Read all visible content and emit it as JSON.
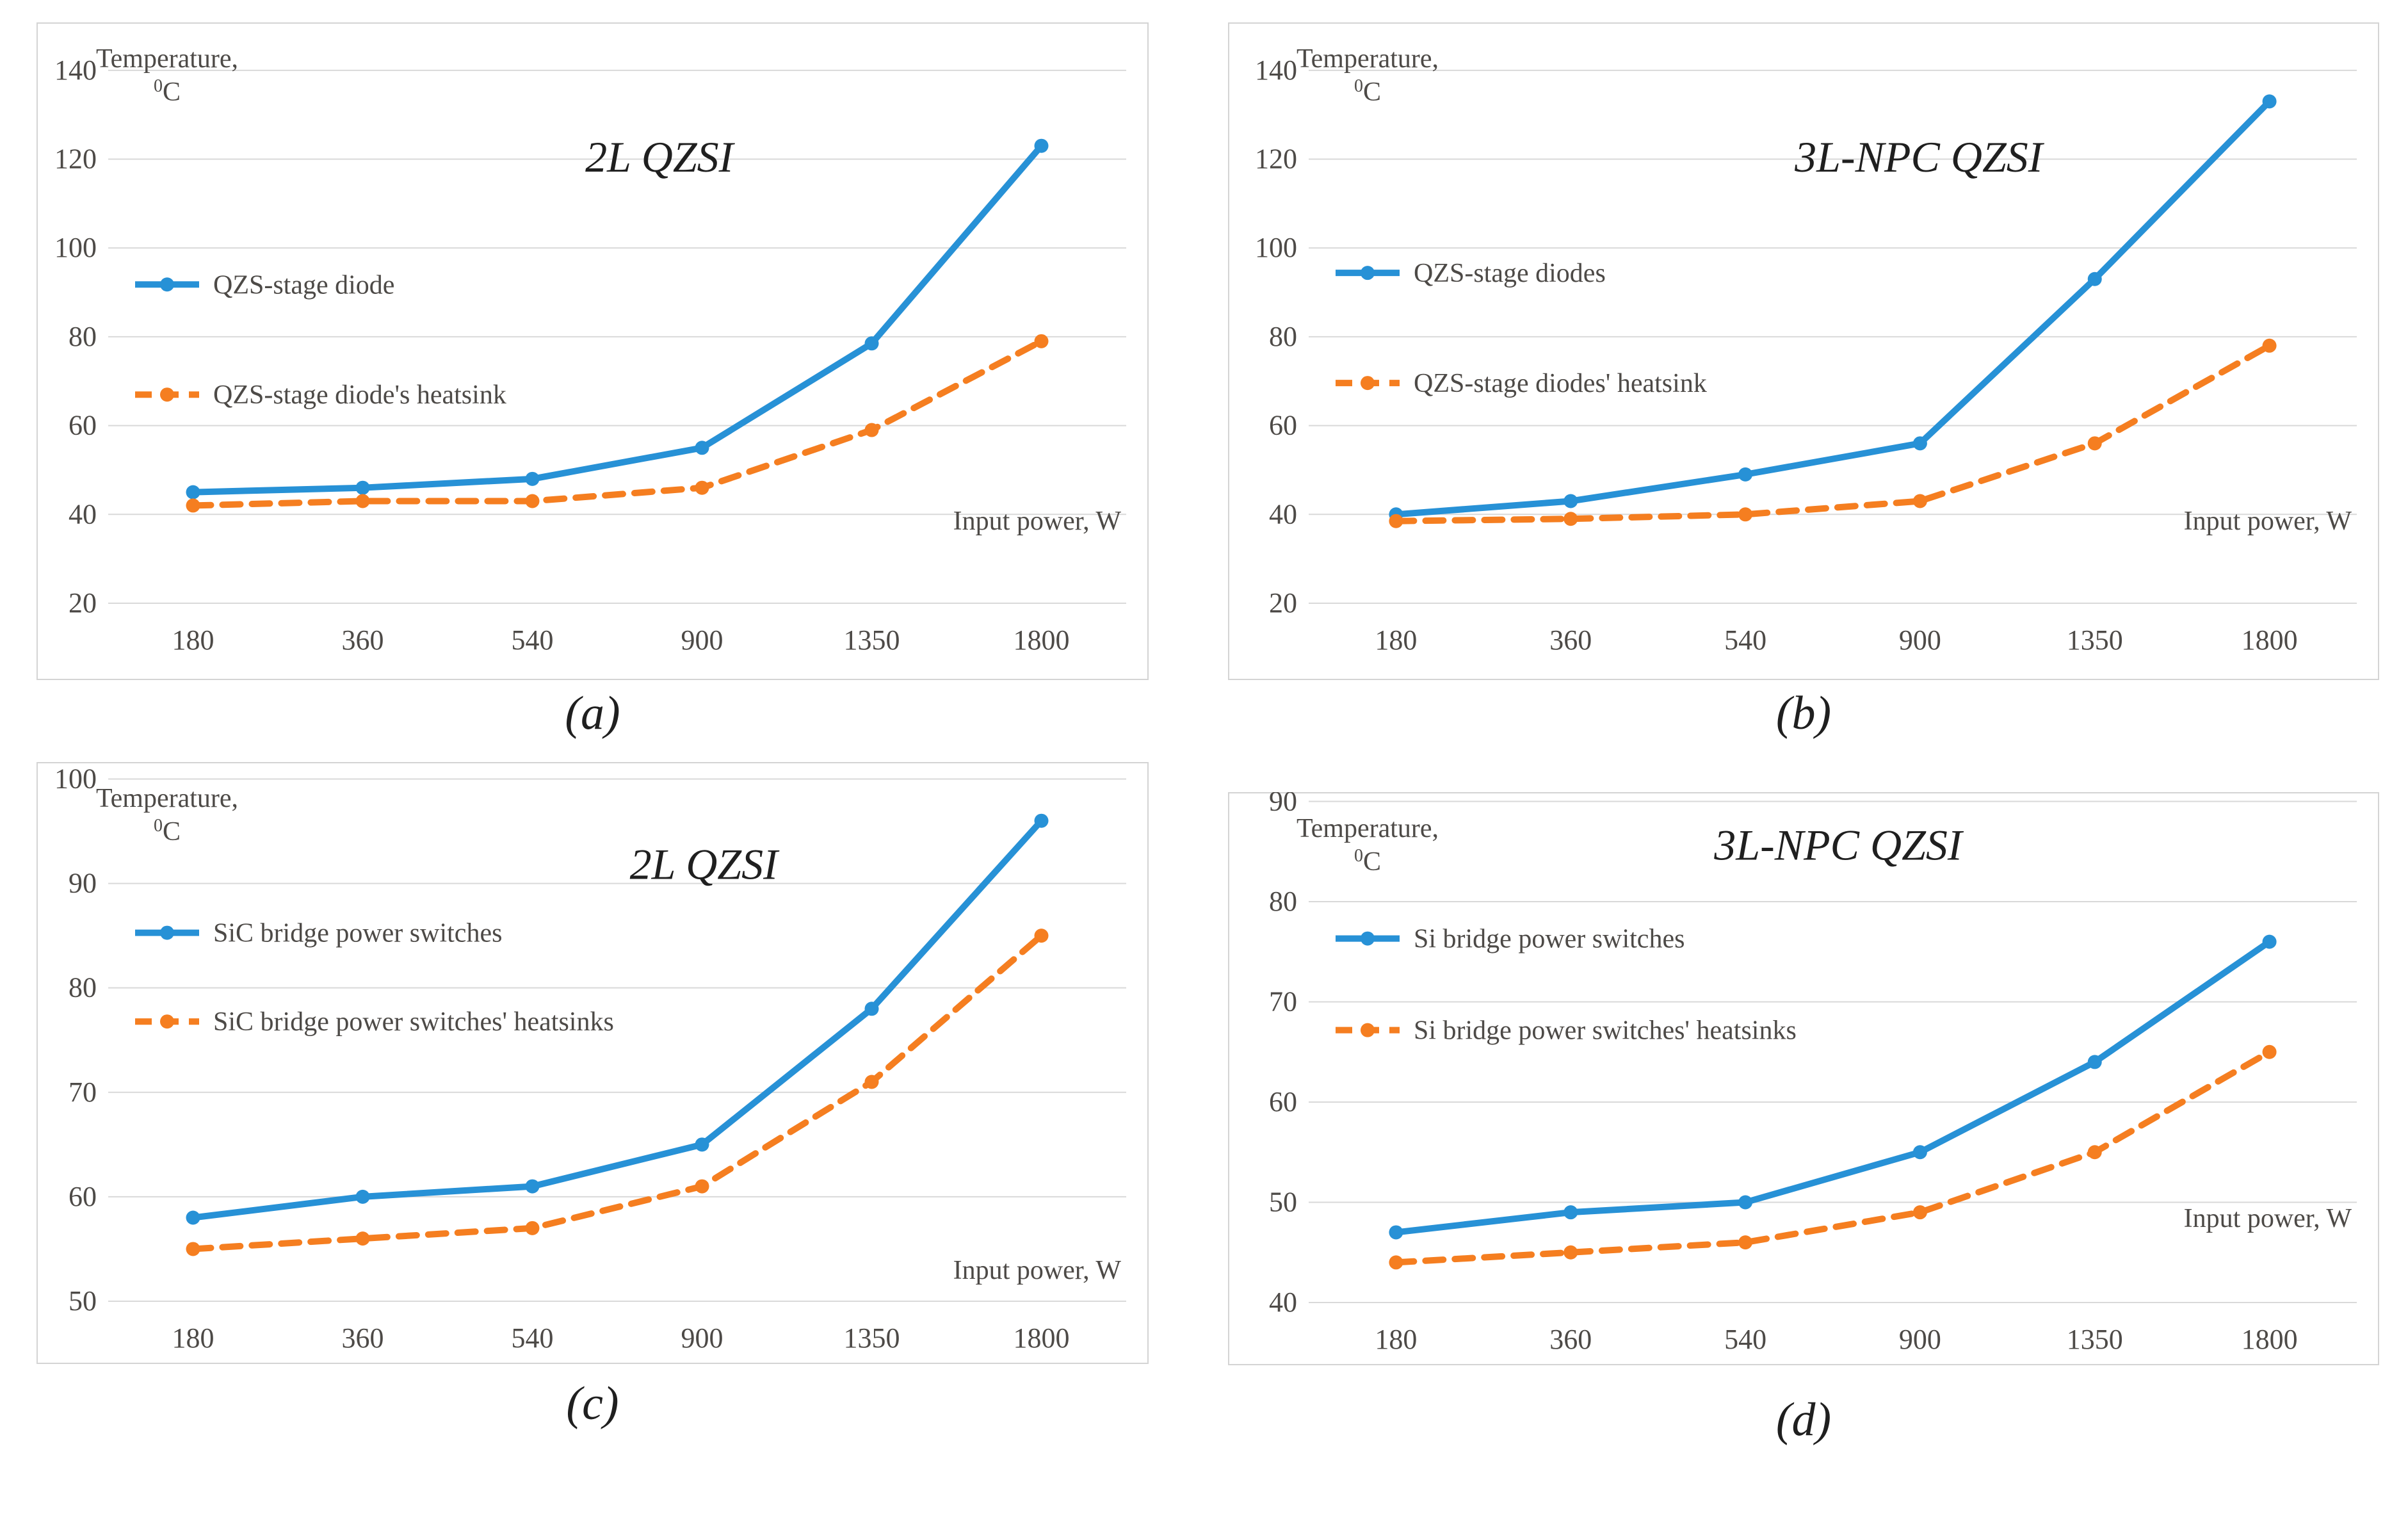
{
  "colors": {
    "series_blue": "#2791D6",
    "series_orange": "#F57E20",
    "gridline": "#D9D9D9",
    "panel_border": "#D4D4D4",
    "tick_text": "#4D4A47",
    "legend_text": "#4D4A47",
    "axis_label_text": "#4D4A47",
    "title_text": "#1f1f1f",
    "caption_text": "#1f1f1f"
  },
  "chart_data": [
    {
      "type": "line",
      "caption": "(a)",
      "title": "2L QZSI",
      "y_axis_label_line1": "Temperature,",
      "y_axis_label_sup": "0",
      "y_axis_label_unit": "C",
      "x_axis_label": "Input power, W",
      "categories": [
        "180",
        "360",
        "540",
        "900",
        "1350",
        "1800"
      ],
      "yticks": [
        20,
        40,
        60,
        80,
        100,
        120,
        140
      ],
      "ylim": [
        20,
        150.5
      ],
      "grid": true,
      "legend_position": "inside-upper-left",
      "series": [
        {
          "name": "QZS-stage diode",
          "color": "blue",
          "style": "solid",
          "values": [
            45,
            46,
            48,
            55,
            78.5,
            123
          ]
        },
        {
          "name": "QZS-stage diode's heatsink",
          "color": "orange",
          "style": "dashed",
          "values": [
            42,
            43,
            43,
            46,
            59,
            79
          ]
        }
      ]
    },
    {
      "type": "line",
      "caption": "(b)",
      "title": "3L-NPC QZSI",
      "y_axis_label_line1": "Temperature,",
      "y_axis_label_sup": "0",
      "y_axis_label_unit": "C",
      "x_axis_label": "Input power, W",
      "categories": [
        "180",
        "360",
        "540",
        "900",
        "1350",
        "1800"
      ],
      "yticks": [
        20,
        40,
        60,
        80,
        100,
        120,
        140
      ],
      "ylim": [
        20,
        150.5
      ],
      "grid": true,
      "legend_position": "inside-upper-left",
      "series": [
        {
          "name": "QZS-stage diodes",
          "color": "blue",
          "style": "solid",
          "values": [
            40,
            43,
            49,
            56,
            93,
            133
          ]
        },
        {
          "name": "QZS-stage diodes' heatsink",
          "color": "orange",
          "style": "dashed",
          "values": [
            38.5,
            39,
            40,
            43,
            56,
            78
          ]
        }
      ]
    },
    {
      "type": "line",
      "caption": "(c)",
      "title": "2L QZSI",
      "y_axis_label_line1": "Temperature,",
      "y_axis_label_sup": "0",
      "y_axis_label_unit": "C",
      "x_axis_label": "Input power, W",
      "categories": [
        "180",
        "360",
        "540",
        "900",
        "1350",
        "1800"
      ],
      "yticks": [
        50,
        60,
        70,
        80,
        90,
        100
      ],
      "ylim": [
        50,
        101.5
      ],
      "grid": true,
      "legend_position": "inside-upper-left",
      "series": [
        {
          "name": "SiC bridge power switches",
          "color": "blue",
          "style": "solid",
          "values": [
            58,
            60,
            61,
            65,
            78,
            96
          ]
        },
        {
          "name": "SiC bridge power switches' heatsinks",
          "color": "orange",
          "style": "dashed",
          "values": [
            55,
            56,
            57,
            61,
            71,
            85
          ]
        }
      ]
    },
    {
      "type": "line",
      "caption": "(d)",
      "title": "3L-NPC QZSI",
      "y_axis_label_line1": "Temperature,",
      "y_axis_label_sup": "0",
      "y_axis_label_unit": "C",
      "x_axis_label": "Input power, W",
      "categories": [
        "180",
        "360",
        "540",
        "900",
        "1350",
        "1800"
      ],
      "yticks": [
        40,
        50,
        60,
        70,
        80,
        90
      ],
      "ylim": [
        40,
        90.8
      ],
      "grid": true,
      "legend_position": "inside-upper-left",
      "series": [
        {
          "name": "Si bridge power switches",
          "color": "blue",
          "style": "solid",
          "values": [
            47,
            49,
            50,
            55,
            64,
            76
          ]
        },
        {
          "name": "Si bridge power switches' heatsinks",
          "color": "orange",
          "style": "dashed",
          "values": [
            44,
            45,
            46,
            49,
            55,
            65
          ]
        }
      ]
    }
  ]
}
